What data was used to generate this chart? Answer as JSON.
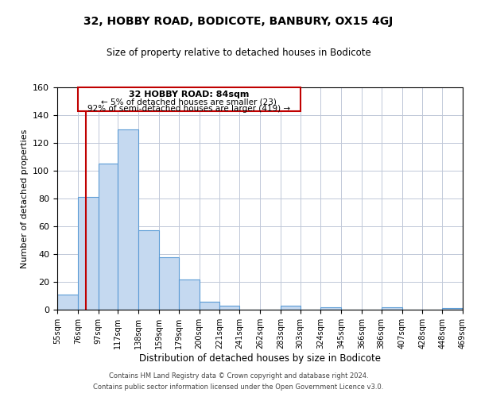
{
  "title": "32, HOBBY ROAD, BODICOTE, BANBURY, OX15 4GJ",
  "subtitle": "Size of property relative to detached houses in Bodicote",
  "xlabel": "Distribution of detached houses by size in Bodicote",
  "ylabel": "Number of detached properties",
  "bin_edges": [
    55,
    76,
    97,
    117,
    138,
    159,
    179,
    200,
    221,
    241,
    262,
    283,
    303,
    324,
    345,
    366,
    386,
    407,
    428,
    448,
    469
  ],
  "bin_labels": [
    "55sqm",
    "76sqm",
    "97sqm",
    "117sqm",
    "138sqm",
    "159sqm",
    "179sqm",
    "200sqm",
    "221sqm",
    "241sqm",
    "262sqm",
    "283sqm",
    "303sqm",
    "324sqm",
    "345sqm",
    "366sqm",
    "386sqm",
    "407sqm",
    "428sqm",
    "448sqm",
    "469sqm"
  ],
  "bar_heights": [
    11,
    81,
    105,
    130,
    57,
    38,
    22,
    6,
    3,
    0,
    0,
    3,
    0,
    2,
    0,
    0,
    2,
    0,
    0,
    1
  ],
  "bar_color": "#c5d9f0",
  "bar_edge_color": "#5b9bd5",
  "vline_x": 84,
  "vline_color": "#c00000",
  "annotation_title": "32 HOBBY ROAD: 84sqm",
  "annotation_line1": "← 5% of detached houses are smaller (23)",
  "annotation_line2": "92% of semi-detached houses are larger (419) →",
  "annotation_box_color": "#c00000",
  "ylim": [
    0,
    160
  ],
  "yticks": [
    0,
    20,
    40,
    60,
    80,
    100,
    120,
    140,
    160
  ],
  "footer1": "Contains HM Land Registry data © Crown copyright and database right 2024.",
  "footer2": "Contains public sector information licensed under the Open Government Licence v3.0.",
  "background_color": "#ffffff",
  "grid_color": "#c0c8d8"
}
